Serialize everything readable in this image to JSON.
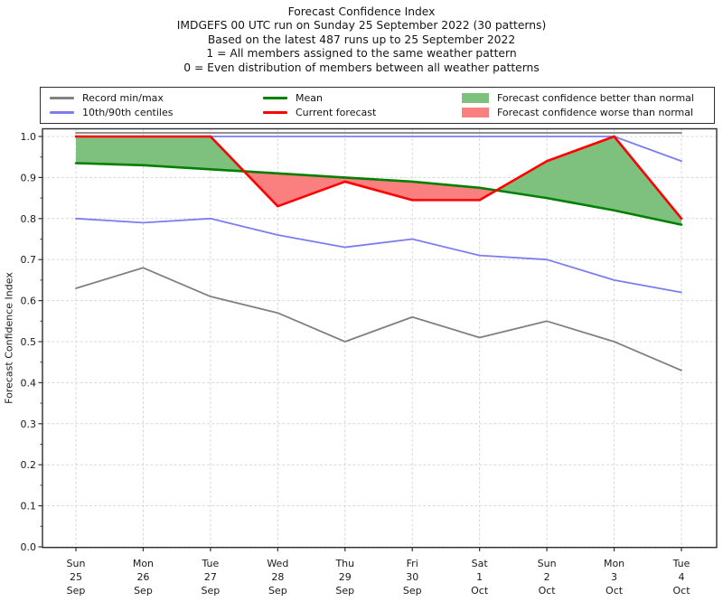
{
  "titles": [
    "Forecast Confidence Index",
    "IMDGEFS 00 UTC run on Sunday 25 September 2022 (30 patterns)",
    "Based on the latest 487 runs up to 25 September 2022",
    "1 = All members assigned to the same weather pattern",
    "0 = Even distribution of members between all weather patterns"
  ],
  "legend": {
    "items": [
      {
        "label": "Record min/max",
        "type": "line",
        "color": "#808080"
      },
      {
        "label": "10th/90th centiles",
        "type": "line",
        "color": "#7d7df2"
      },
      {
        "label": "Mean",
        "type": "line",
        "color": "#008000"
      },
      {
        "label": "Current forecast",
        "type": "line",
        "color": "#ff0000"
      },
      {
        "label": "Forecast confidence better than normal",
        "type": "patch",
        "color": "#7ec17e"
      },
      {
        "label": "Forecast confidence worse than normal",
        "type": "patch",
        "color": "#fa8080"
      }
    ]
  },
  "chart_data": {
    "type": "line",
    "title": "Forecast Confidence Index",
    "xlabel": "",
    "ylabel": "Forecast Confidence Index",
    "ylim": [
      0.0,
      1.0
    ],
    "ytick_step": 0.1,
    "ytick_minor_step": 0.05,
    "grid": true,
    "legend_position": "top",
    "categories": [
      [
        "Sun",
        "25",
        "Sep"
      ],
      [
        "Mon",
        "26",
        "Sep"
      ],
      [
        "Tue",
        "27",
        "Sep"
      ],
      [
        "Wed",
        "28",
        "Sep"
      ],
      [
        "Thu",
        "29",
        "Sep"
      ],
      [
        "Fri",
        "30",
        "Sep"
      ],
      [
        "Sat",
        "1",
        "Oct"
      ],
      [
        "Sun",
        "2",
        "Oct"
      ],
      [
        "Mon",
        "3",
        "Oct"
      ],
      [
        "Tue",
        "4",
        "Oct"
      ]
    ],
    "series": [
      {
        "name": "Record max",
        "color": "#808080",
        "width": 1.8,
        "values": [
          1.0,
          1.0,
          1.0,
          1.0,
          1.0,
          1.0,
          1.0,
          1.0,
          1.0,
          1.0
        ]
      },
      {
        "name": "Record min",
        "color": "#808080",
        "width": 1.8,
        "values": [
          0.63,
          0.68,
          0.61,
          0.57,
          0.5,
          0.56,
          0.51,
          0.55,
          0.5,
          0.43
        ]
      },
      {
        "name": "90th centile",
        "color": "#7d7df2",
        "width": 1.8,
        "values": [
          1.0,
          1.0,
          1.0,
          1.0,
          1.0,
          1.0,
          1.0,
          1.0,
          1.0,
          0.94
        ]
      },
      {
        "name": "10th centile",
        "color": "#7d7df2",
        "width": 1.8,
        "values": [
          0.8,
          0.79,
          0.8,
          0.76,
          0.73,
          0.75,
          0.71,
          0.7,
          0.65,
          0.62
        ]
      },
      {
        "name": "Mean",
        "color": "#008000",
        "width": 2.6,
        "values": [
          0.935,
          0.93,
          0.92,
          0.91,
          0.9,
          0.89,
          0.875,
          0.85,
          0.82,
          0.785
        ]
      },
      {
        "name": "Current forecast",
        "color": "#ff0000",
        "width": 2.6,
        "values": [
          1.0,
          1.0,
          1.0,
          0.83,
          0.89,
          0.845,
          0.845,
          0.94,
          1.0,
          0.8
        ]
      }
    ],
    "fills": {
      "between": [
        "Current forecast",
        "Mean"
      ],
      "better_label": "Forecast confidence better than normal",
      "better_color": "#7ec17e",
      "worse_label": "Forecast confidence worse than normal",
      "worse_color": "#fa8080"
    }
  }
}
